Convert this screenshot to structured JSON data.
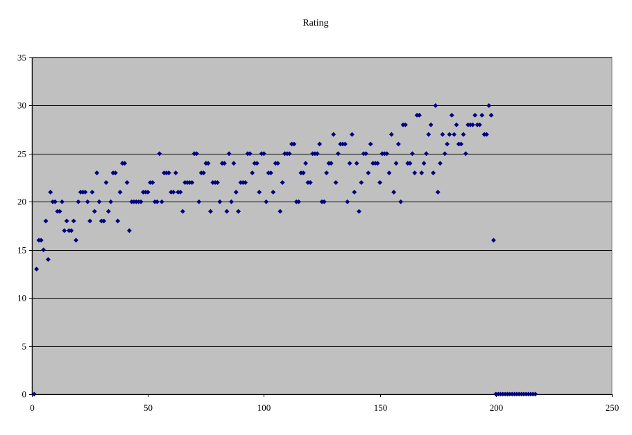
{
  "chart_data": {
    "type": "scatter",
    "title": "Rating",
    "xlabel": "",
    "ylabel": "",
    "xlim": [
      0,
      250
    ],
    "ylim": [
      0,
      35
    ],
    "x_ticks": [
      0,
      50,
      100,
      150,
      200,
      250
    ],
    "y_ticks": [
      0,
      5,
      10,
      15,
      20,
      25,
      30,
      35
    ],
    "grid": {
      "horizontal": true,
      "vertical": false
    },
    "legend": "none",
    "colors": {
      "plot_background": "#c0c0c0",
      "marker": "#000080",
      "gridline": "#000000",
      "page_background": "#ffffff"
    },
    "marker_shape": "diamond",
    "series": [
      {
        "x": [
          1,
          2,
          3,
          4,
          5,
          6,
          7,
          8,
          9,
          10,
          11,
          12,
          13,
          14,
          15,
          16,
          17,
          18,
          19,
          20,
          21,
          22,
          23,
          24,
          25,
          26,
          27,
          28,
          29,
          30,
          31,
          32,
          33,
          34,
          35,
          36,
          37,
          38,
          39,
          40,
          41,
          42,
          43,
          44,
          45,
          46,
          47,
          48,
          49,
          50,
          51,
          52,
          53,
          54,
          55,
          56,
          57,
          58,
          59,
          60,
          61,
          62,
          63,
          64,
          65,
          66,
          67,
          68,
          69,
          70,
          71,
          72,
          73,
          74,
          75,
          76,
          77,
          78,
          79,
          80,
          81,
          82,
          83,
          84,
          85,
          86,
          87,
          88,
          89,
          90,
          91,
          92,
          93,
          94,
          95,
          96,
          97,
          98,
          99,
          100,
          101,
          102,
          103,
          104,
          105,
          106,
          107,
          108,
          109,
          110,
          111,
          112,
          113,
          114,
          115,
          116,
          117,
          118,
          119,
          120,
          121,
          122,
          123,
          124,
          125,
          126,
          127,
          128,
          129,
          130,
          131,
          132,
          133,
          134,
          135,
          136,
          137,
          138,
          139,
          140,
          141,
          142,
          143,
          144,
          145,
          146,
          147,
          148,
          149,
          150,
          151,
          152,
          153,
          154,
          155,
          156,
          157,
          158,
          159,
          160,
          161,
          162,
          163,
          164,
          165,
          166,
          167,
          168,
          169,
          170,
          171,
          172,
          173,
          174,
          175,
          176,
          177,
          178,
          179,
          180,
          181,
          182,
          183,
          184,
          185,
          186,
          187,
          188,
          189,
          190,
          191,
          192,
          193,
          194,
          195,
          196,
          197,
          198,
          199,
          200,
          201,
          202,
          203,
          204,
          205,
          206,
          207,
          208,
          209,
          210,
          211,
          212,
          213,
          214,
          215,
          216,
          217
        ],
        "y": [
          0,
          13,
          16,
          16,
          15,
          18,
          14,
          21,
          20,
          20,
          19,
          19,
          20,
          17,
          18,
          17,
          17,
          18,
          16,
          20,
          21,
          21,
          21,
          20,
          18,
          21,
          19,
          23,
          20,
          18,
          18,
          22,
          19,
          20,
          23,
          23,
          18,
          21,
          24,
          24,
          22,
          17,
          20,
          20,
          20,
          20,
          20,
          21,
          21,
          21,
          22,
          22,
          20,
          20,
          25,
          20,
          23,
          23,
          23,
          21,
          21,
          23,
          21,
          21,
          19,
          22,
          22,
          22,
          22,
          25,
          25,
          20,
          23,
          23,
          24,
          24,
          19,
          22,
          22,
          22,
          20,
          24,
          24,
          19,
          25,
          20,
          24,
          21,
          19,
          22,
          22,
          22,
          25,
          25,
          23,
          24,
          24,
          21,
          25,
          25,
          20,
          23,
          23,
          21,
          24,
          24,
          19,
          22,
          25,
          25,
          25,
          26,
          26,
          20,
          20,
          23,
          23,
          24,
          22,
          22,
          25,
          25,
          25,
          26,
          20,
          20,
          23,
          24,
          24,
          27,
          22,
          25,
          26,
          26,
          26,
          20,
          24,
          27,
          21,
          24,
          19,
          22,
          25,
          25,
          23,
          26,
          24,
          24,
          24,
          22,
          25,
          25,
          25,
          23,
          27,
          21,
          24,
          26,
          20,
          28,
          28,
          24,
          24,
          25,
          23,
          29,
          29,
          23,
          24,
          25,
          27,
          28,
          23,
          30,
          21,
          24,
          27,
          25,
          26,
          27,
          29,
          27,
          28,
          26,
          26,
          27,
          25,
          28,
          28,
          28,
          29,
          28,
          28,
          29,
          27,
          27,
          30,
          29,
          16,
          0,
          0,
          0,
          0,
          0,
          0,
          0,
          0,
          0,
          0,
          0,
          0,
          0,
          0,
          0,
          0,
          0,
          0
        ]
      }
    ]
  }
}
